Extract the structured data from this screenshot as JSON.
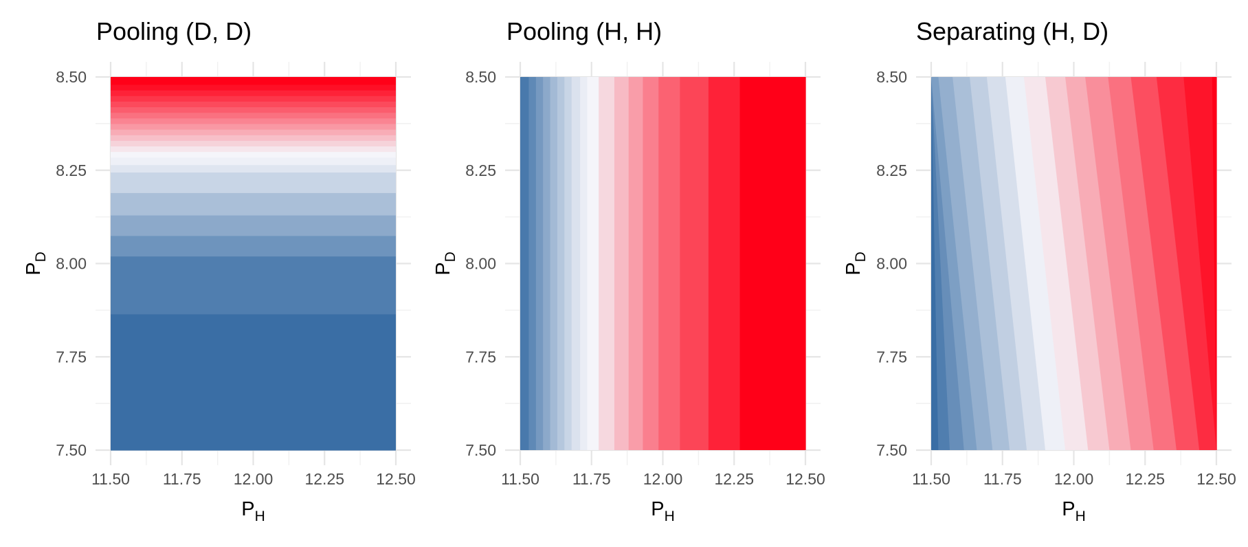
{
  "figure": {
    "palette": {
      "low": "#3a6ea5",
      "mid": "#f5f5fa",
      "high": "#ff0018",
      "grid": "#e5e5e5"
    }
  },
  "chart_data": [
    {
      "type": "heatmap",
      "subtype": "filled-contour",
      "title": "Pooling (D, D)",
      "xlabel": {
        "main": "P",
        "sub": "H"
      },
      "ylabel": {
        "main": "P",
        "sub": "D"
      },
      "xlim": [
        11.5,
        12.5
      ],
      "ylim": [
        7.5,
        8.5
      ],
      "xticks": [
        "11.50",
        "11.75",
        "12.00",
        "12.25",
        "12.50"
      ],
      "yticks": [
        "7.50",
        "7.75",
        "8.00",
        "8.25",
        "8.50"
      ],
      "gradient_direction": "vertical",
      "note": "Contour bands vary with P_D only; boundaries listed bottom-to-top with fill level (0 = dark blue, 1 = red)",
      "band_bounds": [
        7.5,
        7.865,
        8.02,
        8.075,
        8.13,
        8.19,
        8.245,
        8.265,
        8.285,
        8.3,
        8.315,
        8.33,
        8.345,
        8.36,
        8.375,
        8.39,
        8.405,
        8.42,
        8.435,
        8.45,
        8.465,
        8.48,
        8.5
      ],
      "band_levels": [
        0.0,
        0.06,
        0.14,
        0.22,
        0.3,
        0.38,
        0.44,
        0.48,
        0.5,
        0.53,
        0.57,
        0.61,
        0.65,
        0.69,
        0.73,
        0.77,
        0.81,
        0.85,
        0.89,
        0.93,
        0.97,
        1.0
      ]
    },
    {
      "type": "heatmap",
      "subtype": "filled-contour",
      "title": "Pooling (H, H)",
      "xlabel": {
        "main": "P",
        "sub": "H"
      },
      "ylabel": {
        "main": "P",
        "sub": "D"
      },
      "xlim": [
        11.5,
        12.5
      ],
      "ylim": [
        7.5,
        8.5
      ],
      "xticks": [
        "11.50",
        "11.75",
        "12.00",
        "12.25",
        "12.50"
      ],
      "yticks": [
        "7.50",
        "7.75",
        "8.00",
        "8.25",
        "8.50"
      ],
      "gradient_direction": "horizontal",
      "note": "Contour bands vary with P_H only; boundaries listed left-to-right with fill level (0 = dark blue, 1 = red)",
      "band_bounds": [
        11.5,
        11.53,
        11.555,
        11.58,
        11.605,
        11.63,
        11.655,
        11.68,
        11.71,
        11.735,
        11.775,
        11.83,
        11.88,
        11.93,
        11.985,
        12.06,
        12.16,
        12.27,
        12.5
      ],
      "band_levels": [
        0.04,
        0.1,
        0.16,
        0.22,
        0.28,
        0.33,
        0.38,
        0.43,
        0.47,
        0.5,
        0.56,
        0.62,
        0.68,
        0.74,
        0.8,
        0.86,
        0.93,
        1.0
      ]
    },
    {
      "type": "heatmap",
      "subtype": "filled-contour",
      "title": "Separating (H, D)",
      "xlabel": {
        "main": "P",
        "sub": "H"
      },
      "ylabel": {
        "main": "P",
        "sub": "D"
      },
      "xlim": [
        11.5,
        12.5
      ],
      "ylim": [
        7.5,
        8.5
      ],
      "xticks": [
        "11.50",
        "11.75",
        "12.00",
        "12.25",
        "12.50"
      ],
      "yticks": [
        "7.50",
        "7.75",
        "8.00",
        "8.25",
        "8.50"
      ],
      "gradient_direction": "diagonal",
      "note": "Contour boundaries listed as [P_H at P_D=7.50, P_H at P_D=8.50]; bands fill between consecutive boundaries with given level",
      "band_bounds": [
        [
          11.5,
          11.5
        ],
        [
          11.525,
          11.5
        ],
        [
          11.565,
          11.5
        ],
        [
          11.615,
          11.5
        ],
        [
          11.66,
          11.525
        ],
        [
          11.715,
          11.575
        ],
        [
          11.775,
          11.635
        ],
        [
          11.835,
          11.695
        ],
        [
          11.9,
          11.76
        ],
        [
          11.97,
          11.825
        ],
        [
          12.05,
          11.9
        ],
        [
          12.125,
          11.97
        ],
        [
          12.2,
          12.04
        ],
        [
          12.28,
          12.12
        ],
        [
          12.36,
          12.2
        ],
        [
          12.44,
          12.29
        ],
        [
          12.5,
          12.385
        ],
        [
          12.5,
          12.485
        ],
        [
          12.5,
          12.5
        ]
      ],
      "band_levels": [
        0.0,
        0.06,
        0.12,
        0.18,
        0.24,
        0.3,
        0.36,
        0.42,
        0.48,
        0.53,
        0.59,
        0.65,
        0.71,
        0.77,
        0.84,
        0.91,
        0.96,
        1.0
      ]
    }
  ]
}
